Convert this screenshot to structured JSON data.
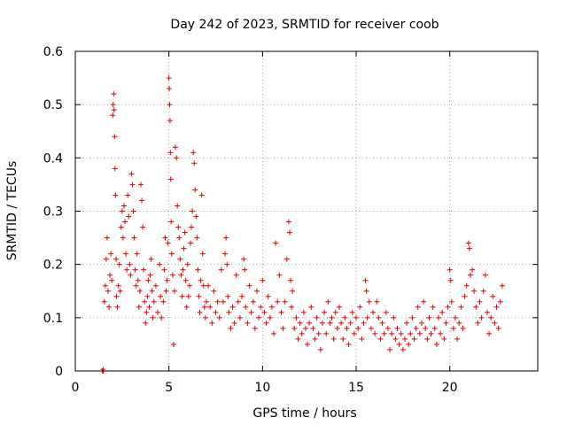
{
  "chart_data": {
    "type": "scatter",
    "title": "Day 242 of 2023, SRMTID for receiver coob",
    "xlabel": "GPS time / hours",
    "ylabel": "SRMTID / TECUs",
    "xlim": [
      0,
      24.7
    ],
    "ylim": [
      0,
      0.6
    ],
    "x_ticks": [
      0,
      5,
      10,
      15,
      20
    ],
    "x_tick_labels": [
      "0",
      "5",
      "10",
      "15",
      "20"
    ],
    "y_ticks": [
      0,
      0.1,
      0.2,
      0.3,
      0.4,
      0.5,
      0.6
    ],
    "y_tick_labels": [
      "0",
      "0.1",
      "0.2",
      "0.3",
      "0.4",
      "0.5",
      "0.6"
    ],
    "grid": true,
    "marker": "+",
    "series_color": "#e00000",
    "series": [
      {
        "name": "SRMTID",
        "points": [
          [
            1.45,
            0.0
          ],
          [
            1.48,
            0.003
          ],
          [
            1.5,
            0.0
          ],
          [
            1.55,
            0.13
          ],
          [
            1.6,
            0.16
          ],
          [
            1.65,
            0.21
          ],
          [
            1.7,
            0.25
          ],
          [
            1.75,
            0.15
          ],
          [
            1.8,
            0.12
          ],
          [
            1.85,
            0.18
          ],
          [
            1.9,
            0.22
          ],
          [
            1.95,
            0.17
          ],
          [
            2.0,
            0.48
          ],
          [
            2.02,
            0.5
          ],
          [
            2.05,
            0.52
          ],
          [
            2.07,
            0.49
          ],
          [
            2.1,
            0.44
          ],
          [
            2.12,
            0.38
          ],
          [
            2.15,
            0.33
          ],
          [
            2.18,
            0.21
          ],
          [
            2.2,
            0.14
          ],
          [
            2.25,
            0.12
          ],
          [
            2.3,
            0.16
          ],
          [
            2.35,
            0.2
          ],
          [
            2.4,
            0.15
          ],
          [
            2.45,
            0.27
          ],
          [
            2.5,
            0.3
          ],
          [
            2.55,
            0.25
          ],
          [
            2.6,
            0.31
          ],
          [
            2.65,
            0.28
          ],
          [
            2.7,
            0.22
          ],
          [
            2.75,
            0.19
          ],
          [
            2.8,
            0.33
          ],
          [
            2.85,
            0.29
          ],
          [
            2.9,
            0.2
          ],
          [
            2.95,
            0.18
          ],
          [
            3.0,
            0.37
          ],
          [
            3.05,
            0.35
          ],
          [
            3.1,
            0.3
          ],
          [
            3.15,
            0.25
          ],
          [
            3.2,
            0.19
          ],
          [
            3.25,
            0.16
          ],
          [
            3.3,
            0.22
          ],
          [
            3.35,
            0.17
          ],
          [
            3.4,
            0.12
          ],
          [
            3.45,
            0.15
          ],
          [
            3.5,
            0.35
          ],
          [
            3.55,
            0.32
          ],
          [
            3.6,
            0.27
          ],
          [
            3.65,
            0.19
          ],
          [
            3.7,
            0.13
          ],
          [
            3.75,
            0.09
          ],
          [
            3.8,
            0.11
          ],
          [
            3.85,
            0.14
          ],
          [
            3.9,
            0.17
          ],
          [
            3.95,
            0.12
          ],
          [
            4.0,
            0.18
          ],
          [
            4.05,
            0.21
          ],
          [
            4.1,
            0.15
          ],
          [
            4.15,
            0.1
          ],
          [
            4.2,
            0.13
          ],
          [
            4.3,
            0.16
          ],
          [
            4.4,
            0.11
          ],
          [
            4.5,
            0.2
          ],
          [
            4.55,
            0.14
          ],
          [
            4.6,
            0.1
          ],
          [
            4.7,
            0.13
          ],
          [
            4.75,
            0.19
          ],
          [
            4.8,
            0.25
          ],
          [
            4.85,
            0.15
          ],
          [
            4.9,
            0.17
          ],
          [
            4.95,
            0.24
          ],
          [
            5.0,
            0.55
          ],
          [
            5.02,
            0.53
          ],
          [
            5.04,
            0.5
          ],
          [
            5.06,
            0.47
          ],
          [
            5.08,
            0.41
          ],
          [
            5.1,
            0.36
          ],
          [
            5.12,
            0.28
          ],
          [
            5.15,
            0.22
          ],
          [
            5.2,
            0.18
          ],
          [
            5.25,
            0.05
          ],
          [
            5.3,
            0.15
          ],
          [
            5.35,
            0.42
          ],
          [
            5.4,
            0.4
          ],
          [
            5.45,
            0.31
          ],
          [
            5.5,
            0.27
          ],
          [
            5.55,
            0.25
          ],
          [
            5.6,
            0.21
          ],
          [
            5.65,
            0.18
          ],
          [
            5.7,
            0.14
          ],
          [
            5.75,
            0.19
          ],
          [
            5.8,
            0.23
          ],
          [
            5.85,
            0.26
          ],
          [
            5.9,
            0.17
          ],
          [
            5.95,
            0.12
          ],
          [
            6.0,
            0.2
          ],
          [
            6.05,
            0.14
          ],
          [
            6.1,
            0.16
          ],
          [
            6.15,
            0.24
          ],
          [
            6.2,
            0.27
          ],
          [
            6.25,
            0.3
          ],
          [
            6.3,
            0.41
          ],
          [
            6.35,
            0.39
          ],
          [
            6.4,
            0.34
          ],
          [
            6.45,
            0.29
          ],
          [
            6.5,
            0.25
          ],
          [
            6.55,
            0.19
          ],
          [
            6.6,
            0.14
          ],
          [
            6.65,
            0.11
          ],
          [
            6.7,
            0.17
          ],
          [
            6.75,
            0.33
          ],
          [
            6.8,
            0.22
          ],
          [
            6.85,
            0.16
          ],
          [
            6.9,
            0.12
          ],
          [
            6.95,
            0.1
          ],
          [
            7.0,
            0.13
          ],
          [
            7.1,
            0.16
          ],
          [
            7.2,
            0.12
          ],
          [
            7.3,
            0.09
          ],
          [
            7.4,
            0.15
          ],
          [
            7.5,
            0.11
          ],
          [
            7.6,
            0.13
          ],
          [
            7.7,
            0.1
          ],
          [
            7.8,
            0.19
          ],
          [
            7.9,
            0.13
          ],
          [
            8.0,
            0.22
          ],
          [
            8.05,
            0.25
          ],
          [
            8.1,
            0.2
          ],
          [
            8.15,
            0.14
          ],
          [
            8.2,
            0.11
          ],
          [
            8.3,
            0.08
          ],
          [
            8.4,
            0.12
          ],
          [
            8.5,
            0.09
          ],
          [
            8.6,
            0.18
          ],
          [
            8.7,
            0.13
          ],
          [
            8.8,
            0.1
          ],
          [
            8.9,
            0.14
          ],
          [
            9.0,
            0.21
          ],
          [
            9.05,
            0.19
          ],
          [
            9.1,
            0.12
          ],
          [
            9.2,
            0.09
          ],
          [
            9.3,
            0.16
          ],
          [
            9.4,
            0.11
          ],
          [
            9.5,
            0.13
          ],
          [
            9.6,
            0.08
          ],
          [
            9.7,
            0.15
          ],
          [
            9.8,
            0.1
          ],
          [
            9.9,
            0.12
          ],
          [
            10.0,
            0.17
          ],
          [
            10.1,
            0.11
          ],
          [
            10.2,
            0.09
          ],
          [
            10.3,
            0.14
          ],
          [
            10.4,
            0.1
          ],
          [
            10.5,
            0.12
          ],
          [
            10.6,
            0.07
          ],
          [
            10.7,
            0.24
          ],
          [
            10.8,
            0.13
          ],
          [
            10.9,
            0.18
          ],
          [
            11.0,
            0.11
          ],
          [
            11.1,
            0.08
          ],
          [
            11.2,
            0.13
          ],
          [
            11.3,
            0.21
          ],
          [
            11.4,
            0.28
          ],
          [
            11.45,
            0.26
          ],
          [
            11.5,
            0.17
          ],
          [
            11.55,
            0.12
          ],
          [
            11.6,
            0.15
          ],
          [
            11.7,
            0.08
          ],
          [
            11.8,
            0.1
          ],
          [
            11.9,
            0.06
          ],
          [
            12.0,
            0.09
          ],
          [
            12.1,
            0.07
          ],
          [
            12.2,
            0.11
          ],
          [
            12.3,
            0.08
          ],
          [
            12.4,
            0.05
          ],
          [
            12.5,
            0.09
          ],
          [
            12.6,
            0.12
          ],
          [
            12.7,
            0.08
          ],
          [
            12.8,
            0.06
          ],
          [
            12.9,
            0.1
          ],
          [
            13.0,
            0.07
          ],
          [
            13.1,
            0.04
          ],
          [
            13.2,
            0.09
          ],
          [
            13.3,
            0.11
          ],
          [
            13.4,
            0.07
          ],
          [
            13.5,
            0.13
          ],
          [
            13.6,
            0.09
          ],
          [
            13.7,
            0.1
          ],
          [
            13.8,
            0.06
          ],
          [
            13.9,
            0.11
          ],
          [
            14.0,
            0.08
          ],
          [
            14.1,
            0.12
          ],
          [
            14.2,
            0.09
          ],
          [
            14.3,
            0.06
          ],
          [
            14.4,
            0.1
          ],
          [
            14.5,
            0.08
          ],
          [
            14.6,
            0.05
          ],
          [
            14.7,
            0.09
          ],
          [
            14.8,
            0.11
          ],
          [
            14.9,
            0.07
          ],
          [
            15.0,
            0.1
          ],
          [
            15.1,
            0.08
          ],
          [
            15.2,
            0.12
          ],
          [
            15.3,
            0.06
          ],
          [
            15.4,
            0.09
          ],
          [
            15.5,
            0.17
          ],
          [
            15.55,
            0.15
          ],
          [
            15.6,
            0.1
          ],
          [
            15.7,
            0.13
          ],
          [
            15.8,
            0.08
          ],
          [
            15.9,
            0.11
          ],
          [
            16.0,
            0.07
          ],
          [
            16.1,
            0.13
          ],
          [
            16.2,
            0.1
          ],
          [
            16.3,
            0.06
          ],
          [
            16.4,
            0.09
          ],
          [
            16.5,
            0.07
          ],
          [
            16.6,
            0.11
          ],
          [
            16.7,
            0.08
          ],
          [
            16.8,
            0.04
          ],
          [
            16.9,
            0.07
          ],
          [
            17.0,
            0.1
          ],
          [
            17.1,
            0.06
          ],
          [
            17.2,
            0.08
          ],
          [
            17.3,
            0.05
          ],
          [
            17.4,
            0.07
          ],
          [
            17.5,
            0.04
          ],
          [
            17.6,
            0.06
          ],
          [
            17.7,
            0.09
          ],
          [
            17.8,
            0.05
          ],
          [
            17.9,
            0.07
          ],
          [
            18.0,
            0.1
          ],
          [
            18.1,
            0.06
          ],
          [
            18.2,
            0.08
          ],
          [
            18.3,
            0.12
          ],
          [
            18.4,
            0.07
          ],
          [
            18.5,
            0.09
          ],
          [
            18.6,
            0.13
          ],
          [
            18.7,
            0.08
          ],
          [
            18.8,
            0.06
          ],
          [
            18.9,
            0.1
          ],
          [
            19.0,
            0.07
          ],
          [
            19.1,
            0.12
          ],
          [
            19.2,
            0.08
          ],
          [
            19.3,
            0.05
          ],
          [
            19.4,
            0.1
          ],
          [
            19.5,
            0.07
          ],
          [
            19.6,
            0.11
          ],
          [
            19.7,
            0.06
          ],
          [
            19.8,
            0.09
          ],
          [
            19.9,
            0.12
          ],
          [
            20.0,
            0.19
          ],
          [
            20.05,
            0.17
          ],
          [
            20.1,
            0.13
          ],
          [
            20.2,
            0.08
          ],
          [
            20.3,
            0.1
          ],
          [
            20.4,
            0.06
          ],
          [
            20.5,
            0.09
          ],
          [
            20.6,
            0.12
          ],
          [
            20.7,
            0.08
          ],
          [
            20.8,
            0.14
          ],
          [
            20.9,
            0.16
          ],
          [
            21.0,
            0.24
          ],
          [
            21.05,
            0.23
          ],
          [
            21.1,
            0.18
          ],
          [
            21.2,
            0.19
          ],
          [
            21.3,
            0.15
          ],
          [
            21.4,
            0.12
          ],
          [
            21.5,
            0.09
          ],
          [
            21.6,
            0.13
          ],
          [
            21.7,
            0.1
          ],
          [
            21.8,
            0.15
          ],
          [
            21.9,
            0.18
          ],
          [
            22.0,
            0.11
          ],
          [
            22.1,
            0.07
          ],
          [
            22.2,
            0.1
          ],
          [
            22.3,
            0.14
          ],
          [
            22.4,
            0.09
          ],
          [
            22.5,
            0.12
          ],
          [
            22.6,
            0.08
          ],
          [
            22.7,
            0.13
          ],
          [
            22.8,
            0.16
          ]
        ]
      }
    ]
  }
}
